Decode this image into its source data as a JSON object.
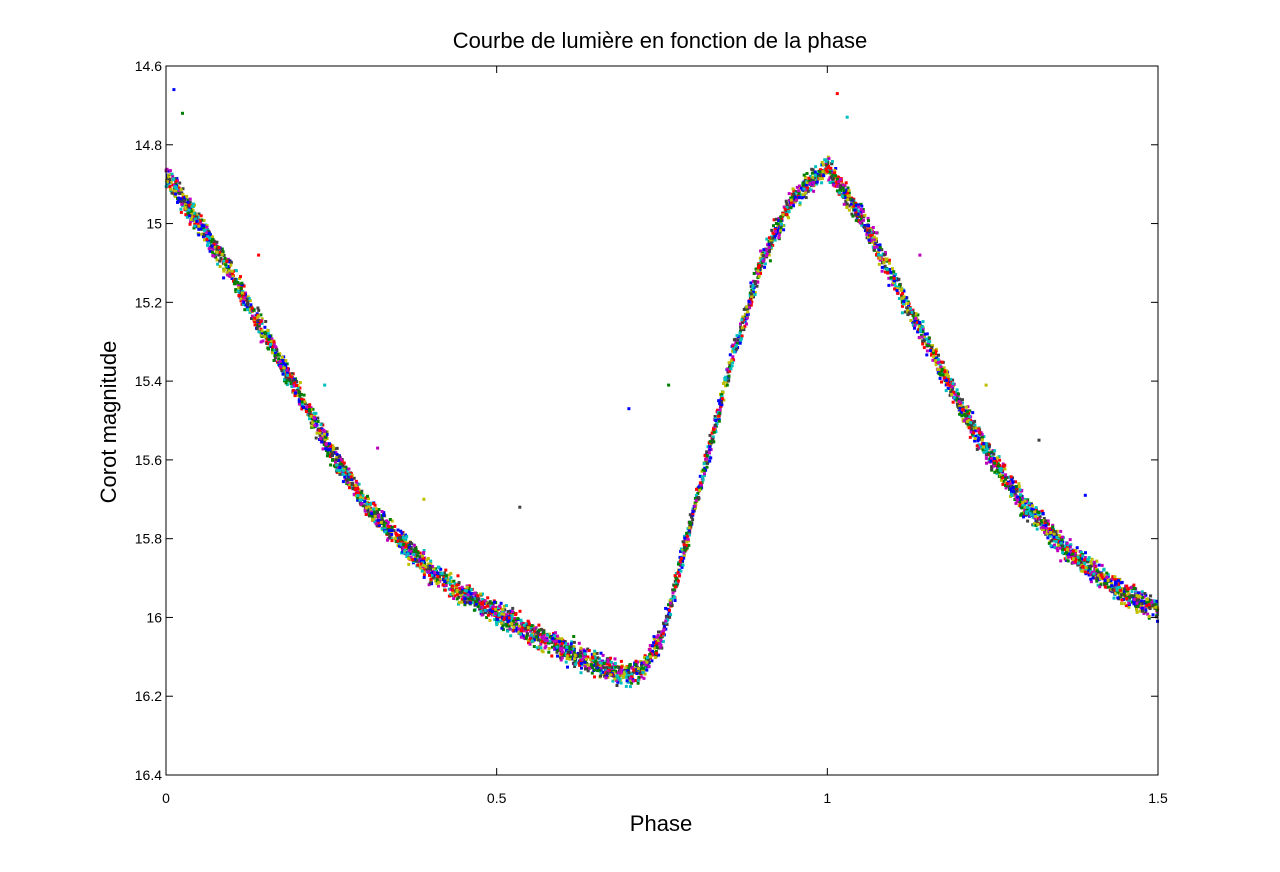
{
  "chart_data": {
    "type": "scatter",
    "title": "Courbe de lumière en fonction de la phase",
    "xlabel": "Phase",
    "ylabel": "Corot magnitude",
    "xlim": [
      0,
      1.5
    ],
    "ylim": [
      14.6,
      16.4
    ],
    "y_reversed": true,
    "grid": false,
    "xticks": [
      0,
      0.5,
      1,
      1.5
    ],
    "xtick_labels": [
      "0",
      "0.5",
      "1",
      "1.5"
    ],
    "yticks": [
      14.6,
      14.8,
      15,
      15.2,
      15.4,
      15.6,
      15.8,
      16,
      16.2,
      16.4
    ],
    "ytick_labels": [
      "14.6",
      "14.8",
      "15",
      "15.2",
      "15.4",
      "15.6",
      "15.8",
      "16",
      "16.2",
      "16.4"
    ],
    "marker": "dot",
    "colors": [
      "#0000ff",
      "#008000",
      "#ff0000",
      "#00bfbf",
      "#bf00bf",
      "#bfbf00",
      "#404040"
    ],
    "light_curve": {
      "phase": [
        0,
        0.05,
        0.1,
        0.15,
        0.2,
        0.25,
        0.3,
        0.35,
        0.4,
        0.45,
        0.5,
        0.55,
        0.6,
        0.65,
        0.7,
        0.72,
        0.75,
        0.8,
        0.85,
        0.9,
        0.95,
        1,
        1.05,
        1.1,
        1.15,
        1.2,
        1.25,
        1.3,
        1.35,
        1.4,
        1.45,
        1.5
      ],
      "magnitude": [
        14.88,
        15.0,
        15.13,
        15.28,
        15.43,
        15.58,
        15.71,
        15.8,
        15.88,
        15.94,
        15.99,
        16.04,
        16.08,
        16.12,
        16.15,
        16.13,
        16.05,
        15.72,
        15.38,
        15.1,
        14.93,
        14.86,
        14.98,
        15.14,
        15.3,
        15.46,
        15.6,
        15.72,
        15.81,
        15.88,
        15.94,
        15.98
      ]
    },
    "scatter_half_width": 0.035,
    "outliers": [
      {
        "x": 0.012,
        "y": 14.66
      },
      {
        "x": 0.025,
        "y": 14.72
      },
      {
        "x": 0.14,
        "y": 15.08
      },
      {
        "x": 0.24,
        "y": 15.41
      },
      {
        "x": 0.32,
        "y": 15.57
      },
      {
        "x": 0.39,
        "y": 15.7
      },
      {
        "x": 0.535,
        "y": 15.72
      },
      {
        "x": 0.7,
        "y": 15.47
      },
      {
        "x": 0.76,
        "y": 15.41
      },
      {
        "x": 1.015,
        "y": 14.67
      },
      {
        "x": 1.03,
        "y": 14.73
      },
      {
        "x": 1.14,
        "y": 15.08
      },
      {
        "x": 1.24,
        "y": 15.41
      },
      {
        "x": 1.32,
        "y": 15.55
      },
      {
        "x": 1.39,
        "y": 15.69
      }
    ]
  }
}
